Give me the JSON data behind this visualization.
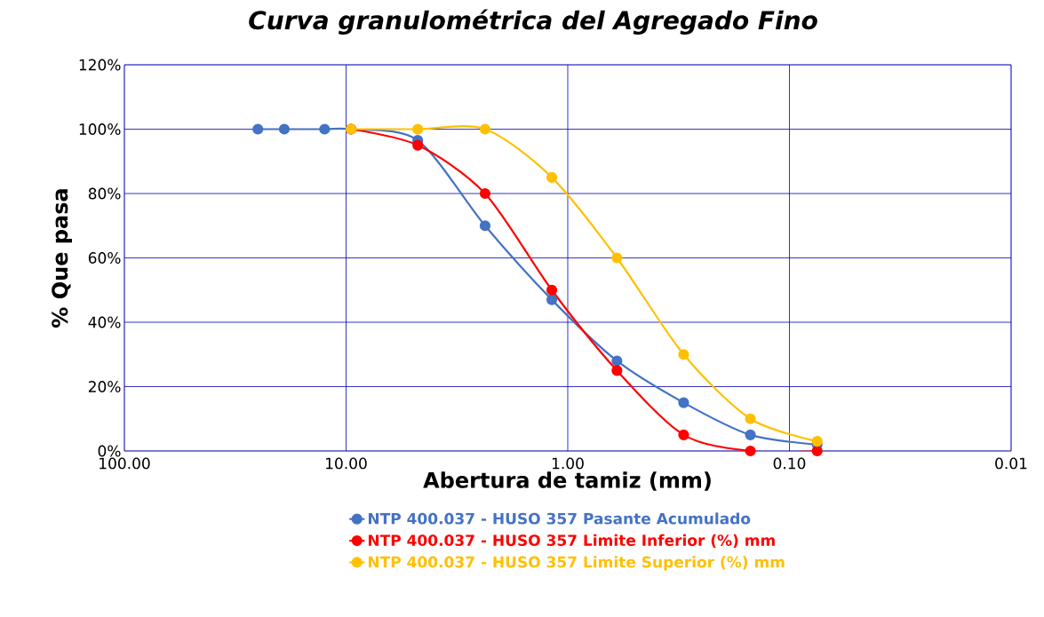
{
  "chart_data": {
    "type": "line",
    "title": "Curva granulométrica del Agregado Fino",
    "xlabel": "Abertura de tamiz (mm)",
    "ylabel": "% Que pasa",
    "log": "x",
    "xlim": [
      100,
      0.01
    ],
    "ylim": [
      0,
      120
    ],
    "xticks": [
      {
        "value": 100,
        "label": "100.00"
      },
      {
        "value": 10,
        "label": "10.00"
      },
      {
        "value": 1,
        "label": "1.00"
      },
      {
        "value": 0.1,
        "label": "0.10"
      },
      {
        "value": 0.01,
        "label": "0.01"
      }
    ],
    "yticks": [
      {
        "value": 0,
        "label": "0%"
      },
      {
        "value": 20,
        "label": "20%"
      },
      {
        "value": 40,
        "label": "40%"
      },
      {
        "value": 60,
        "label": "60%"
      },
      {
        "value": 80,
        "label": "80%"
      },
      {
        "value": 100,
        "label": "100%"
      },
      {
        "value": 120,
        "label": "120%"
      }
    ],
    "grid": true,
    "legend": "bottom",
    "marker": "circle",
    "series": [
      {
        "name": "NTP 400.037 - HUSO 357 Pasante Acumulado",
        "color": "#4472c4",
        "x": [
          25,
          19,
          12.5,
          9.5,
          4.75,
          2.36,
          1.18,
          0.6,
          0.3,
          0.15,
          0.075
        ],
        "values": [
          100,
          100,
          100,
          100,
          96.5,
          70,
          47,
          28,
          15,
          5,
          2
        ]
      },
      {
        "name": "NTP 400.037 - HUSO 357 Limite Inferior (%) mm",
        "color": "#ff0000",
        "x": [
          9.5,
          4.75,
          2.36,
          1.18,
          0.6,
          0.3,
          0.15,
          0.075
        ],
        "values": [
          100,
          95,
          80,
          50,
          25,
          5,
          0,
          0
        ]
      },
      {
        "name": "NTP 400.037 - HUSO 357 Limite Superior (%) mm",
        "color": "#ffc000",
        "x": [
          9.5,
          4.75,
          2.36,
          1.18,
          0.6,
          0.3,
          0.15,
          0.075
        ],
        "values": [
          100,
          100,
          100,
          85,
          60,
          30,
          10,
          3
        ]
      }
    ]
  }
}
